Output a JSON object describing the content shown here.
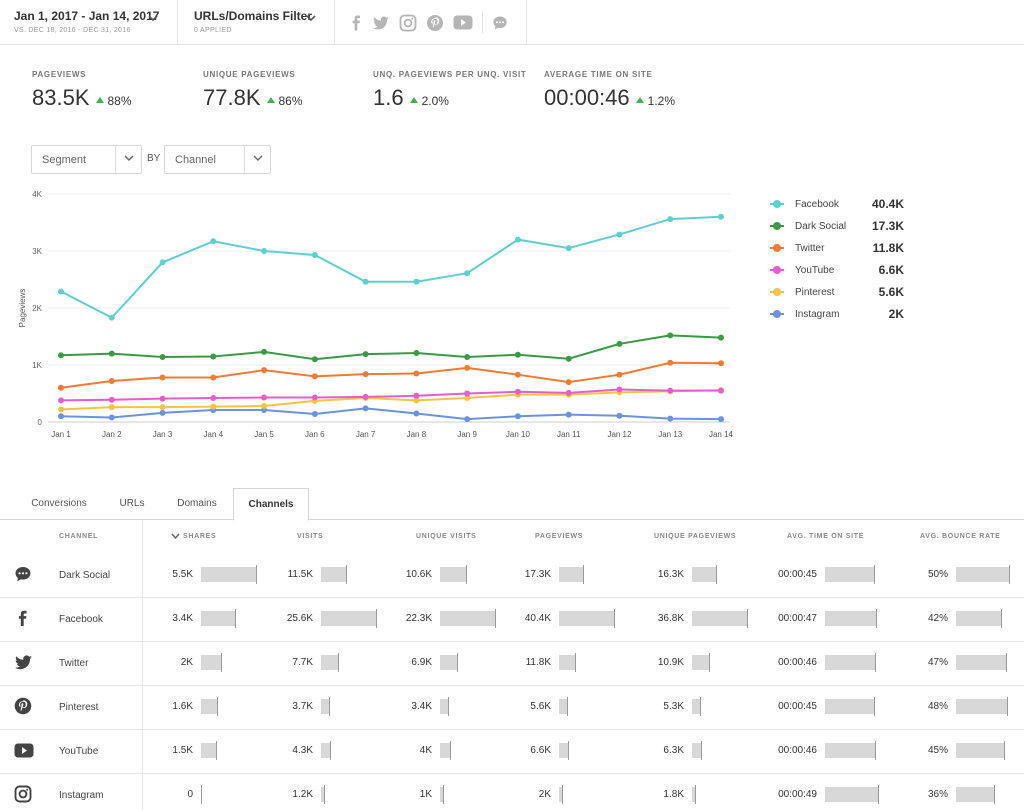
{
  "topbar": {
    "date_range": "Jan 1, 2017 - Jan 14, 2017",
    "compare_range": "VS. DEC 18, 2016 - DEC 31, 2016",
    "filter_title": "URLs/Domains Filter",
    "filter_sub": "0 APPLIED",
    "social_icons": [
      "facebook-icon",
      "twitter-icon",
      "instagram-icon",
      "pinterest-icon",
      "youtube-icon",
      "dark-social-icon"
    ]
  },
  "metrics": [
    {
      "label": "PAGEVIEWS",
      "value": "83.5K",
      "change": "88%"
    },
    {
      "label": "UNIQUE PAGEVIEWS",
      "value": "77.8K",
      "change": "86%"
    },
    {
      "label": "UNQ. PAGEVIEWS PER UNQ. VISIT",
      "value": "1.6",
      "change": "2.0%"
    },
    {
      "label": "AVERAGE TIME ON SITE",
      "value": "00:00:46",
      "change": "1.2%"
    }
  ],
  "controls": {
    "segment": "Segment",
    "by": "BY",
    "channel": "Channel"
  },
  "chart_data": {
    "type": "line",
    "ylabel": "Pageviews",
    "ylim": [
      0,
      4000
    ],
    "yticks": [
      "0",
      "1K",
      "2K",
      "3K",
      "4K"
    ],
    "categories": [
      "Jan 1",
      "Jan 2",
      "Jan 3",
      "Jan 4",
      "Jan 5",
      "Jan 6",
      "Jan 7",
      "Jan 8",
      "Jan 9",
      "Jan 10",
      "Jan 11",
      "Jan 12",
      "Jan 13",
      "Jan 14"
    ],
    "grid": true,
    "legend_position": "right",
    "series": [
      {
        "name": "Facebook",
        "total": "40.4K",
        "color": "#5fcfcf",
        "values": [
          2290,
          1830,
          2800,
          3170,
          3000,
          2930,
          2460,
          2460,
          2610,
          3200,
          3050,
          3290,
          3560,
          3600
        ]
      },
      {
        "name": "Dark Social",
        "total": "17.3K",
        "color": "#3b9a45",
        "values": [
          1170,
          1200,
          1140,
          1150,
          1230,
          1100,
          1190,
          1210,
          1140,
          1180,
          1110,
          1370,
          1520,
          1480
        ]
      },
      {
        "name": "Twitter",
        "total": "11.8K",
        "color": "#f07b35",
        "values": [
          600,
          720,
          780,
          780,
          910,
          800,
          840,
          850,
          950,
          830,
          700,
          830,
          1040,
          1030
        ]
      },
      {
        "name": "YouTube",
        "total": "6.6K",
        "color": "#e55fcb",
        "values": [
          380,
          390,
          410,
          420,
          430,
          430,
          440,
          460,
          500,
          530,
          510,
          570,
          550,
          550
        ]
      },
      {
        "name": "Pinterest",
        "total": "5.6K",
        "color": "#f5c445",
        "values": [
          220,
          260,
          260,
          270,
          280,
          370,
          420,
          380,
          420,
          480,
          480,
          520,
          540,
          560
        ]
      },
      {
        "name": "Instagram",
        "total": "2K",
        "color": "#6b93e0",
        "values": [
          100,
          80,
          160,
          210,
          210,
          140,
          240,
          150,
          50,
          100,
          130,
          110,
          60,
          50
        ]
      }
    ]
  },
  "tabs": [
    "Conversions",
    "URLs",
    "Domains",
    "Channels"
  ],
  "table": {
    "headers": [
      "CHANNEL",
      "SHARES",
      "VISITS",
      "UNIQUE VISITS",
      "PAGEVIEWS",
      "UNIQUE PAGEVIEWS",
      "AVG. TIME ON SITE",
      "AVG. BOUNCE RATE"
    ],
    "rows": [
      {
        "channel": "Dark Social",
        "icon": "dark-social-icon",
        "shares": "5.5K",
        "visits": "11.5K",
        "unique_visits": "10.6K",
        "pageviews": "17.3K",
        "unique_pageviews": "16.3K",
        "avg_time": "00:00:45",
        "bounce": "50%",
        "fill": {
          "shares": 1.0,
          "visits": 0.45,
          "unique_visits": 0.48,
          "pageviews": 0.43,
          "unique_pageviews": 0.44,
          "avg_time": 0.92,
          "bounce": 1.0
        }
      },
      {
        "channel": "Facebook",
        "icon": "facebook-icon",
        "shares": "3.4K",
        "visits": "25.6K",
        "unique_visits": "22.3K",
        "pageviews": "40.4K",
        "unique_pageviews": "36.8K",
        "avg_time": "00:00:47",
        "bounce": "42%",
        "fill": {
          "shares": 0.62,
          "visits": 1.0,
          "unique_visits": 1.0,
          "pageviews": 1.0,
          "unique_pageviews": 1.0,
          "avg_time": 0.96,
          "bounce": 0.84
        }
      },
      {
        "channel": "Twitter",
        "icon": "twitter-icon",
        "shares": "2K",
        "visits": "7.7K",
        "unique_visits": "6.9K",
        "pageviews": "11.8K",
        "unique_pageviews": "10.9K",
        "avg_time": "00:00:46",
        "bounce": "47%",
        "fill": {
          "shares": 0.36,
          "visits": 0.3,
          "unique_visits": 0.31,
          "pageviews": 0.29,
          "unique_pageviews": 0.3,
          "avg_time": 0.94,
          "bounce": 0.94
        }
      },
      {
        "channel": "Pinterest",
        "icon": "pinterest-icon",
        "shares": "1.6K",
        "visits": "3.7K",
        "unique_visits": "3.4K",
        "pageviews": "5.6K",
        "unique_pageviews": "5.3K",
        "avg_time": "00:00:45",
        "bounce": "48%",
        "fill": {
          "shares": 0.29,
          "visits": 0.14,
          "unique_visits": 0.15,
          "pageviews": 0.14,
          "unique_pageviews": 0.14,
          "avg_time": 0.92,
          "bounce": 0.96
        }
      },
      {
        "channel": "YouTube",
        "icon": "youtube-icon",
        "shares": "1.5K",
        "visits": "4.3K",
        "unique_visits": "4K",
        "pageviews": "6.6K",
        "unique_pageviews": "6.3K",
        "avg_time": "00:00:46",
        "bounce": "45%",
        "fill": {
          "shares": 0.27,
          "visits": 0.17,
          "unique_visits": 0.18,
          "pageviews": 0.16,
          "unique_pageviews": 0.17,
          "avg_time": 0.94,
          "bounce": 0.9
        }
      },
      {
        "channel": "Instagram",
        "icon": "instagram-icon",
        "shares": "0",
        "visits": "1.2K",
        "unique_visits": "1K",
        "pageviews": "2K",
        "unique_pageviews": "1.8K",
        "avg_time": "00:00:49",
        "bounce": "36%",
        "fill": {
          "shares": 0.0,
          "visits": 0.05,
          "unique_visits": 0.05,
          "pageviews": 0.05,
          "unique_pageviews": 0.05,
          "avg_time": 1.0,
          "bounce": 0.72
        }
      }
    ]
  }
}
